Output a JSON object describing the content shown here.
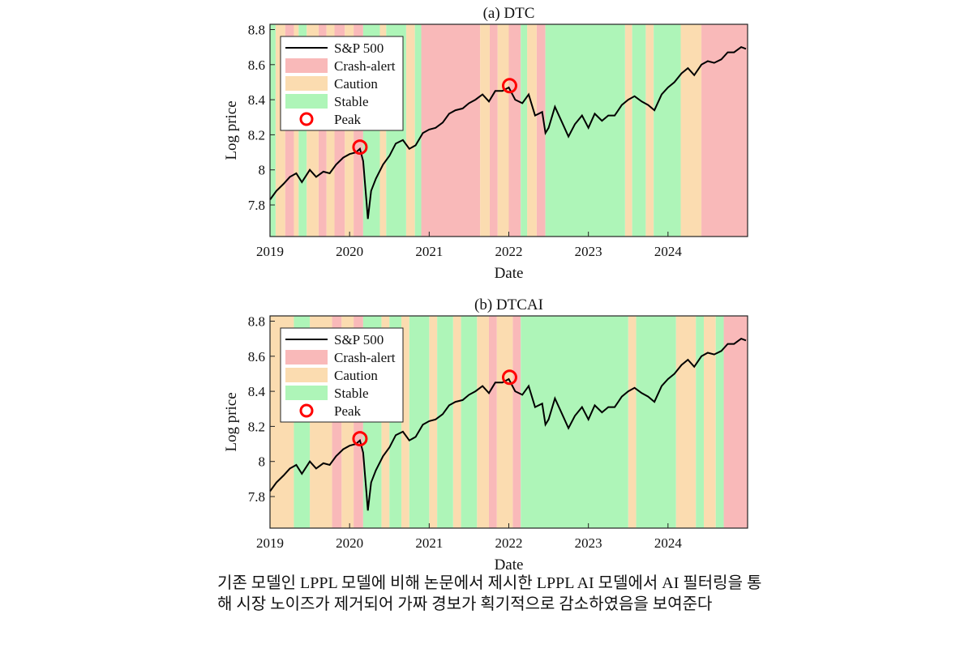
{
  "chart_data": [
    {
      "type": "line",
      "title": "(a) DTC",
      "xlabel": "Date",
      "ylabel": "Log price",
      "xlim": [
        2019,
        2025
      ],
      "xticks": [
        2019,
        2020,
        2021,
        2022,
        2023,
        2024
      ],
      "ylim": [
        7.62,
        8.83
      ],
      "yticks": [
        7.8,
        8,
        8.2,
        8.4,
        8.6,
        8.8
      ],
      "legend": "upper left",
      "series": [
        {
          "name": "S&P 500",
          "color": "#000000",
          "x": [
            2019.0,
            2019.08,
            2019.17,
            2019.25,
            2019.33,
            2019.4,
            2019.5,
            2019.58,
            2019.67,
            2019.75,
            2019.83,
            2019.92,
            2020.0,
            2020.08,
            2020.13,
            2020.17,
            2020.21,
            2020.23,
            2020.27,
            2020.33,
            2020.42,
            2020.5,
            2020.58,
            2020.67,
            2020.75,
            2020.83,
            2020.92,
            2021.0,
            2021.08,
            2021.17,
            2021.25,
            2021.33,
            2021.42,
            2021.5,
            2021.58,
            2021.67,
            2021.75,
            2021.83,
            2021.92,
            2022.0,
            2022.08,
            2022.17,
            2022.25,
            2022.33,
            2022.42,
            2022.46,
            2022.5,
            2022.58,
            2022.67,
            2022.75,
            2022.83,
            2022.92,
            2023.0,
            2023.08,
            2023.17,
            2023.25,
            2023.33,
            2023.42,
            2023.5,
            2023.58,
            2023.67,
            2023.75,
            2023.83,
            2023.92,
            2024.0,
            2024.08,
            2024.17,
            2024.25,
            2024.33,
            2024.42,
            2024.5,
            2024.58,
            2024.67,
            2024.75,
            2024.83,
            2024.92,
            2024.98
          ],
          "values": [
            7.83,
            7.88,
            7.92,
            7.96,
            7.98,
            7.93,
            8.0,
            7.96,
            7.99,
            7.98,
            8.03,
            8.07,
            8.09,
            8.1,
            8.12,
            8.05,
            7.83,
            7.72,
            7.88,
            7.95,
            8.03,
            8.08,
            8.15,
            8.17,
            8.12,
            8.14,
            8.21,
            8.23,
            8.24,
            8.27,
            8.32,
            8.34,
            8.35,
            8.38,
            8.4,
            8.43,
            8.39,
            8.45,
            8.45,
            8.47,
            8.4,
            8.38,
            8.43,
            8.31,
            8.33,
            8.21,
            8.24,
            8.36,
            8.27,
            8.19,
            8.26,
            8.31,
            8.24,
            8.32,
            8.28,
            8.31,
            8.31,
            8.37,
            8.4,
            8.42,
            8.39,
            8.37,
            8.34,
            8.43,
            8.47,
            8.5,
            8.55,
            8.58,
            8.54,
            8.6,
            8.62,
            8.61,
            8.63,
            8.67,
            8.67,
            8.7,
            8.69
          ]
        }
      ],
      "bands": [
        {
          "name": "Crash-alert",
          "color": "#f9b9b9",
          "spans": [
            [
              2019.19,
              2019.3
            ],
            [
              2019.61,
              2019.71
            ],
            [
              2019.81,
              2019.94
            ],
            [
              2020.05,
              2020.17
            ],
            [
              2020.9,
              2021.64
            ],
            [
              2021.76,
              2021.86
            ],
            [
              2022.0,
              2022.15
            ],
            [
              2022.35,
              2022.46
            ],
            [
              2024.42,
              2025.0
            ]
          ]
        },
        {
          "name": "Caution",
          "color": "#fbdcb0",
          "spans": [
            [
              2019.07,
              2019.19
            ],
            [
              2019.3,
              2019.36
            ],
            [
              2019.46,
              2019.61
            ],
            [
              2019.71,
              2019.81
            ],
            [
              2019.94,
              2020.05
            ],
            [
              2020.38,
              2020.46
            ],
            [
              2020.71,
              2020.82
            ],
            [
              2021.64,
              2021.76
            ],
            [
              2021.86,
              2022.0
            ],
            [
              2022.23,
              2022.35
            ],
            [
              2023.46,
              2023.55
            ],
            [
              2023.72,
              2023.82
            ],
            [
              2024.16,
              2024.42
            ]
          ]
        },
        {
          "name": "Stable",
          "color": "#aef5b8",
          "spans": [
            [
              2019.0,
              2019.07
            ],
            [
              2019.36,
              2019.46
            ],
            [
              2020.17,
              2020.38
            ],
            [
              2020.46,
              2020.71
            ],
            [
              2020.82,
              2020.9
            ],
            [
              2022.15,
              2022.23
            ],
            [
              2022.46,
              2023.46
            ],
            [
              2023.55,
              2023.72
            ],
            [
              2023.82,
              2024.16
            ]
          ]
        }
      ],
      "peaks": {
        "name": "Peak",
        "color": "#ff0000",
        "x": [
          2020.13,
          2022.01
        ],
        "values": [
          8.13,
          8.48
        ]
      }
    },
    {
      "type": "line",
      "title": "(b) DTCAI",
      "xlabel": "Date",
      "ylabel": "Log price",
      "xlim": [
        2019,
        2025
      ],
      "xticks": [
        2019,
        2020,
        2021,
        2022,
        2023,
        2024
      ],
      "ylim": [
        7.62,
        8.83
      ],
      "yticks": [
        7.8,
        8,
        8.2,
        8.4,
        8.6,
        8.8
      ],
      "legend": "upper left",
      "series": [
        {
          "name": "S&P 500",
          "color": "#000000",
          "x": [
            2019.0,
            2019.08,
            2019.17,
            2019.25,
            2019.33,
            2019.4,
            2019.5,
            2019.58,
            2019.67,
            2019.75,
            2019.83,
            2019.92,
            2020.0,
            2020.08,
            2020.13,
            2020.17,
            2020.21,
            2020.23,
            2020.27,
            2020.33,
            2020.42,
            2020.5,
            2020.58,
            2020.67,
            2020.75,
            2020.83,
            2020.92,
            2021.0,
            2021.08,
            2021.17,
            2021.25,
            2021.33,
            2021.42,
            2021.5,
            2021.58,
            2021.67,
            2021.75,
            2021.83,
            2021.92,
            2022.0,
            2022.08,
            2022.17,
            2022.25,
            2022.33,
            2022.42,
            2022.46,
            2022.5,
            2022.58,
            2022.67,
            2022.75,
            2022.83,
            2022.92,
            2023.0,
            2023.08,
            2023.17,
            2023.25,
            2023.33,
            2023.42,
            2023.5,
            2023.58,
            2023.67,
            2023.75,
            2023.83,
            2023.92,
            2024.0,
            2024.08,
            2024.17,
            2024.25,
            2024.33,
            2024.42,
            2024.5,
            2024.58,
            2024.67,
            2024.75,
            2024.83,
            2024.92,
            2024.98
          ],
          "values": [
            7.83,
            7.88,
            7.92,
            7.96,
            7.98,
            7.93,
            8.0,
            7.96,
            7.99,
            7.98,
            8.03,
            8.07,
            8.09,
            8.1,
            8.12,
            8.05,
            7.83,
            7.72,
            7.88,
            7.95,
            8.03,
            8.08,
            8.15,
            8.17,
            8.12,
            8.14,
            8.21,
            8.23,
            8.24,
            8.27,
            8.32,
            8.34,
            8.35,
            8.38,
            8.4,
            8.43,
            8.39,
            8.45,
            8.45,
            8.47,
            8.4,
            8.38,
            8.43,
            8.31,
            8.33,
            8.21,
            8.24,
            8.36,
            8.27,
            8.19,
            8.26,
            8.31,
            8.24,
            8.32,
            8.28,
            8.31,
            8.31,
            8.37,
            8.4,
            8.42,
            8.39,
            8.37,
            8.34,
            8.43,
            8.47,
            8.5,
            8.55,
            8.58,
            8.54,
            8.6,
            8.62,
            8.61,
            8.63,
            8.67,
            8.67,
            8.7,
            8.69
          ]
        }
      ],
      "bands": [
        {
          "name": "Crash-alert",
          "color": "#f9b9b9",
          "spans": [
            [
              2019.78,
              2019.9
            ],
            [
              2020.05,
              2020.17
            ],
            [
              2021.75,
              2021.85
            ],
            [
              2022.05,
              2022.15
            ],
            [
              2024.7,
              2025.0
            ]
          ]
        },
        {
          "name": "Caution",
          "color": "#fbdcb0",
          "spans": [
            [
              2019.0,
              2019.3
            ],
            [
              2019.5,
              2019.78
            ],
            [
              2019.9,
              2020.05
            ],
            [
              2020.4,
              2020.5
            ],
            [
              2020.65,
              2020.75
            ],
            [
              2021.0,
              2021.1
            ],
            [
              2021.3,
              2021.4
            ],
            [
              2021.6,
              2021.75
            ],
            [
              2021.85,
              2022.05
            ],
            [
              2023.5,
              2023.6
            ],
            [
              2024.1,
              2024.35
            ],
            [
              2024.45,
              2024.6
            ]
          ]
        },
        {
          "name": "Stable",
          "color": "#aef5b8",
          "spans": [
            [
              2019.3,
              2019.5
            ],
            [
              2020.17,
              2020.4
            ],
            [
              2020.5,
              2020.65
            ],
            [
              2020.75,
              2021.0
            ],
            [
              2021.1,
              2021.3
            ],
            [
              2021.4,
              2021.6
            ],
            [
              2022.15,
              2023.5
            ],
            [
              2023.6,
              2024.1
            ],
            [
              2024.35,
              2024.45
            ],
            [
              2024.6,
              2024.7
            ]
          ]
        }
      ],
      "peaks": {
        "name": "Peak",
        "color": "#ff0000",
        "x": [
          2020.13,
          2022.01
        ],
        "values": [
          8.13,
          8.48
        ]
      }
    }
  ],
  "caption": "기존 모델인 LPPL 모델에 비해 논문에서 제시한 LPPL AI 모델에서 AI 필터링을 통해 시장 노이즈가 제거되어 가짜 경보가 획기적으로 감소하였음을 보여준다"
}
